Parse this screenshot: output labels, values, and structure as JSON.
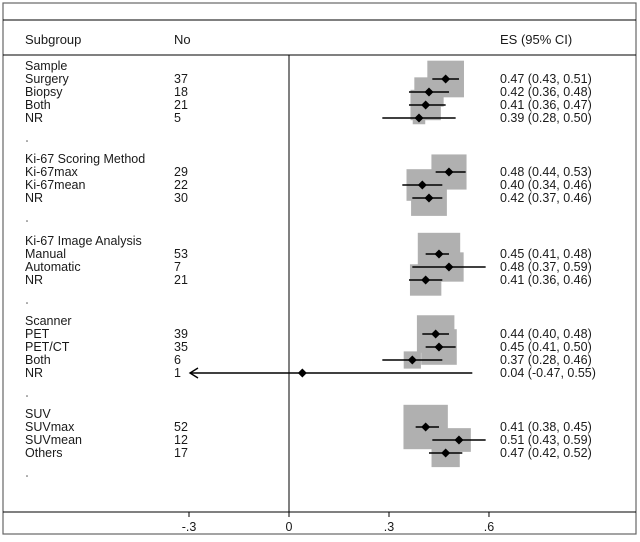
{
  "chart_data": {
    "type": "forest",
    "title": "",
    "xlabel": "",
    "xlim": [
      -0.5,
      0.6
    ],
    "x_ticks": [
      {
        "value": -0.3,
        "label": "-.3"
      },
      {
        "value": 0,
        "label": "0"
      },
      {
        "value": 0.3,
        "label": ".3"
      },
      {
        "value": 0.6,
        "label": ".6"
      }
    ],
    "reference_line": 0,
    "columns": {
      "subgroup": "Subgroup",
      "n": "No",
      "es": "ES (95% CI)"
    },
    "groups": [
      {
        "name": "Sample",
        "rows": [
          {
            "label": "Surgery",
            "n": "37",
            "es": 0.47,
            "lo": 0.43,
            "hi": 0.51,
            "text": "0.47 (0.43, 0.51)",
            "weight": 8.6
          },
          {
            "label": "Biopsy",
            "n": "18",
            "es": 0.42,
            "lo": 0.36,
            "hi": 0.48,
            "text": "0.42 (0.36, 0.48)",
            "weight": 5.5
          },
          {
            "label": "Both",
            "n": "21",
            "es": 0.41,
            "lo": 0.36,
            "hi": 0.47,
            "text": "0.41 (0.36, 0.47)",
            "weight": 5.9
          },
          {
            "label": "NR",
            "n": "5",
            "es": 0.39,
            "lo": 0.28,
            "hi": 0.5,
            "text": "0.39 (0.28, 0.50)",
            "weight": 1.0
          }
        ]
      },
      {
        "name": "Ki-67 Scoring Method",
        "rows": [
          {
            "label": "Ki-67max",
            "n": "29",
            "es": 0.48,
            "lo": 0.44,
            "hi": 0.53,
            "text": "0.48 (0.44, 0.53)",
            "weight": 7.9
          },
          {
            "label": "Ki-67mean",
            "n": "22",
            "es": 0.4,
            "lo": 0.34,
            "hi": 0.46,
            "text": "0.40 (0.34, 0.46)",
            "weight": 6.4
          },
          {
            "label": "NR",
            "n": "30",
            "es": 0.42,
            "lo": 0.37,
            "hi": 0.46,
            "text": "0.42 (0.37, 0.46)",
            "weight": 8.2
          }
        ]
      },
      {
        "name": "Ki-67 Image Analysis",
        "rows": [
          {
            "label": "Manual",
            "n": "53",
            "es": 0.45,
            "lo": 0.41,
            "hi": 0.48,
            "text": "0.45 (0.41, 0.48)",
            "weight": 11.5
          },
          {
            "label": "Automatic",
            "n": "7",
            "es": 0.48,
            "lo": 0.37,
            "hi": 0.59,
            "text": "0.48 (0.37, 0.59)",
            "weight": 5.5
          },
          {
            "label": "NR",
            "n": "21",
            "es": 0.41,
            "lo": 0.36,
            "hi": 0.46,
            "text": "0.41 (0.36, 0.46)",
            "weight": 6.3
          }
        ]
      },
      {
        "name": "Scanner",
        "rows": [
          {
            "label": "PET",
            "n": "39",
            "es": 0.44,
            "lo": 0.4,
            "hi": 0.48,
            "text": "0.44 (0.40, 0.48)",
            "weight": 9.0
          },
          {
            "label": "PET/CT",
            "n": "35",
            "es": 0.45,
            "lo": 0.41,
            "hi": 0.5,
            "text": "0.45 (0.41, 0.50)",
            "weight": 8.1
          },
          {
            "label": "Both",
            "n": "6",
            "es": 0.37,
            "lo": 0.28,
            "hi": 0.46,
            "text": "0.37 (0.28, 0.46)",
            "weight": 1.9
          },
          {
            "label": "NR",
            "n": "1",
            "es": 0.04,
            "lo": -0.47,
            "hi": 0.55,
            "text": "0.04 (-0.47, 0.55)",
            "weight": 0.0
          }
        ]
      },
      {
        "name": "SUV",
        "rows": [
          {
            "label": "SUVmax",
            "n": "52",
            "es": 0.41,
            "lo": 0.38,
            "hi": 0.45,
            "text": "0.41 (0.38, 0.45)",
            "weight": 12.6
          },
          {
            "label": "SUVmean",
            "n": "12",
            "es": 0.51,
            "lo": 0.43,
            "hi": 0.59,
            "text": "0.51 (0.43, 0.59)",
            "weight": 3.6
          },
          {
            "label": "Others",
            "n": "17",
            "es": 0.47,
            "lo": 0.42,
            "hi": 0.52,
            "text": "0.47 (0.42, 0.52)",
            "weight": 5.1
          }
        ]
      }
    ],
    "colors": {
      "box": "#b0b0b0",
      "marker": "#000000",
      "line": "#000000",
      "frame": "#666666"
    }
  }
}
